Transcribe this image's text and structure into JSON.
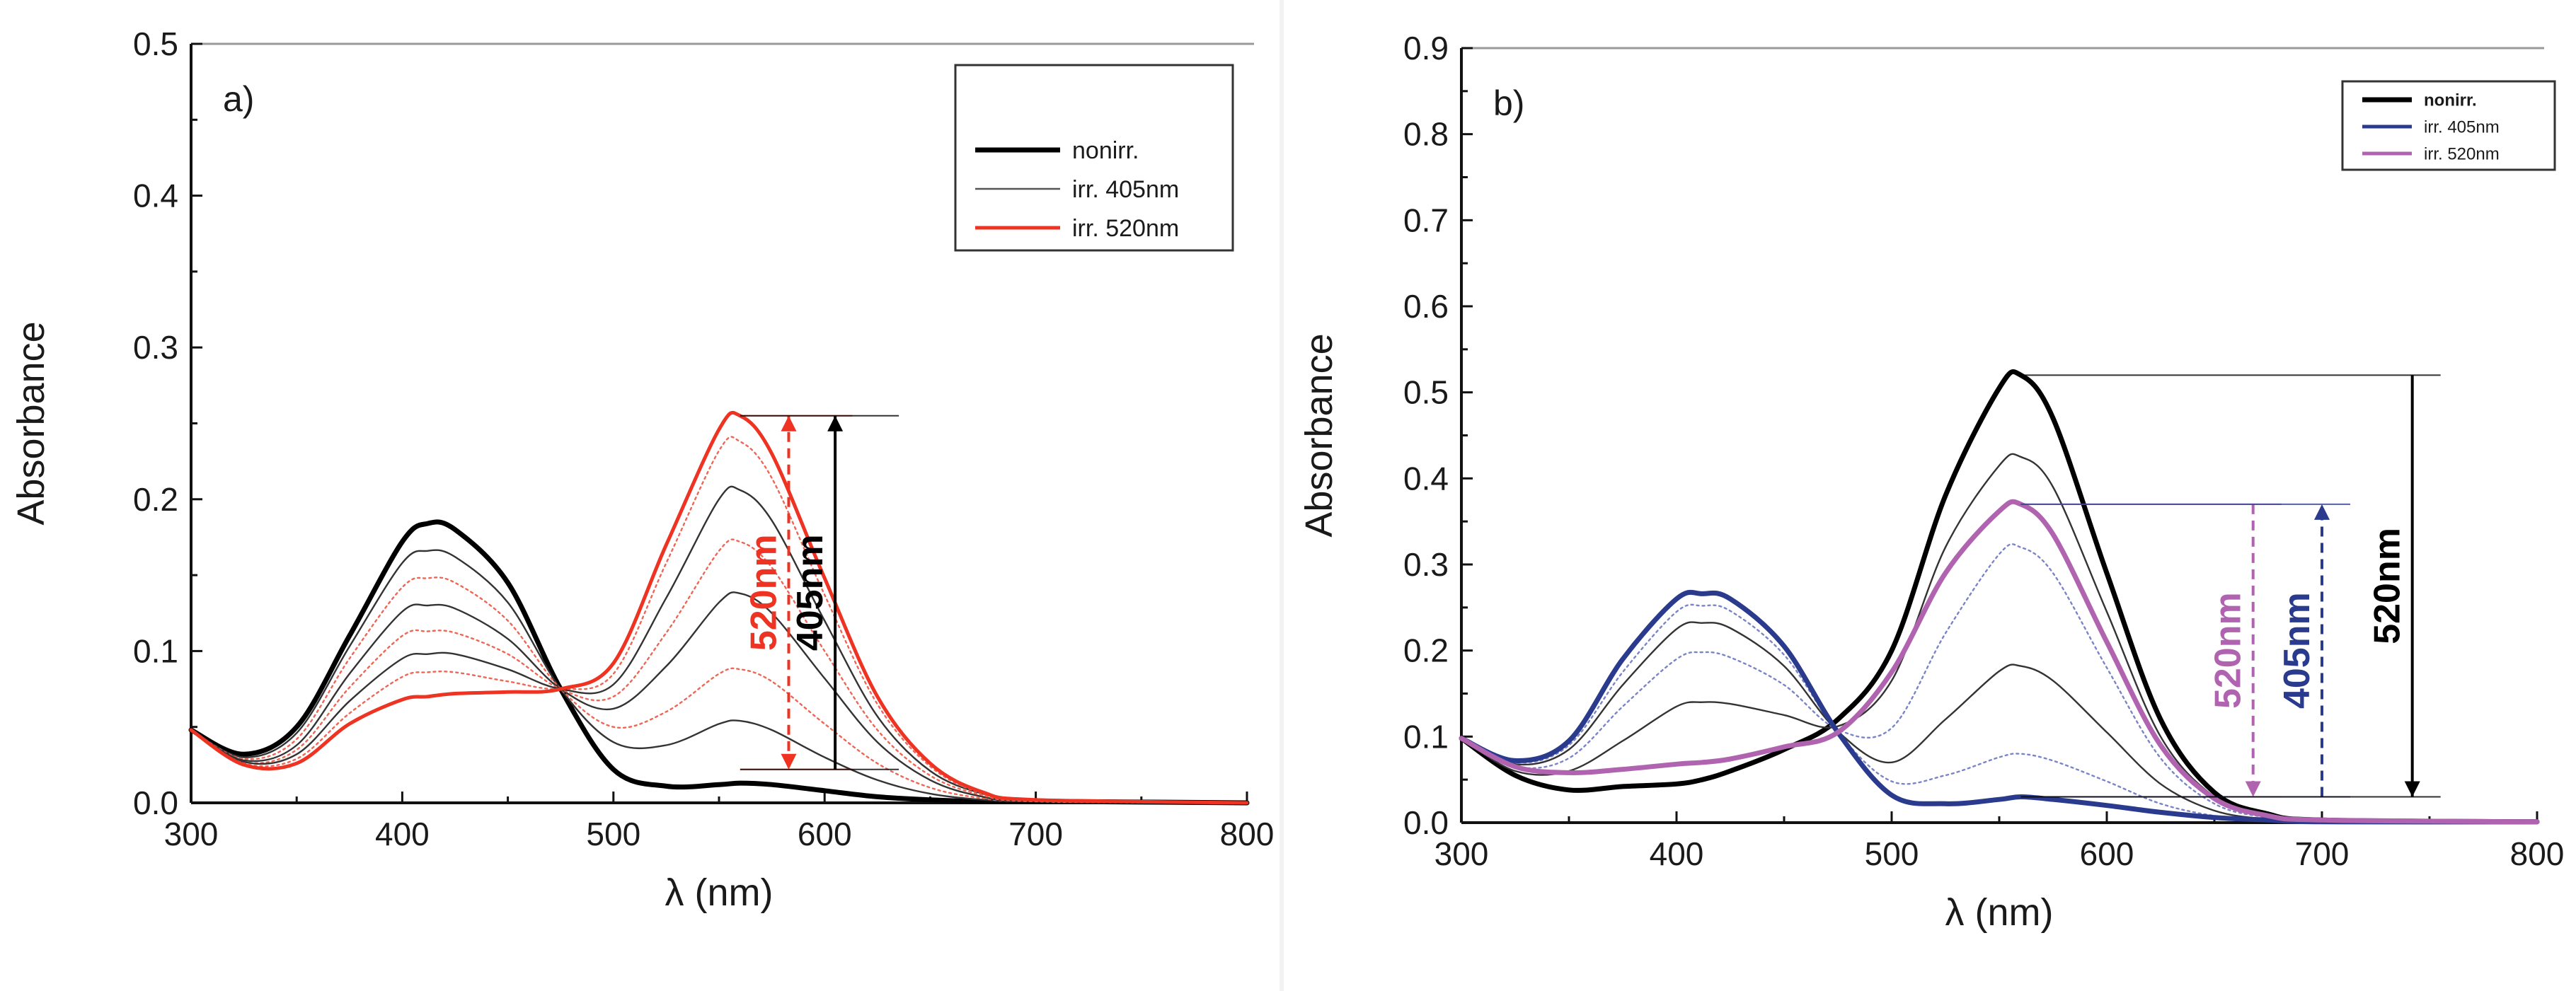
{
  "charts": [
    {
      "panel_label": "a)",
      "chart_data": {
        "type": "line",
        "xlabel": "λ (nm)",
        "ylabel": "Absorbance",
        "xlim": [
          300,
          800
        ],
        "ylim": [
          0.0,
          0.5
        ],
        "xticks": [
          300,
          400,
          500,
          600,
          700,
          800
        ],
        "xtick_labels": [
          "300",
          "400",
          "500",
          "600",
          "700",
          "800"
        ],
        "yticks": [
          0.0,
          0.1,
          0.2,
          0.3,
          0.4,
          0.5
        ],
        "ytick_labels": [
          "0.0",
          "0.1",
          "0.2",
          "0.3",
          "0.4",
          "0.5"
        ],
        "legend": [
          {
            "label": "nonirr.",
            "color": "#000000",
            "style": "thick"
          },
          {
            "label": "irr. 405nm",
            "color": "#555555",
            "style": "thin"
          },
          {
            "label": "irr. 520nm",
            "color": "#ee3322",
            "style": "medium"
          }
        ],
        "series": [
          {
            "name": "nonirr.",
            "color": "#000000",
            "style": "thick",
            "x": [
              300,
              325,
              350,
              375,
              400,
              412,
              425,
              450,
              475,
              500,
              525,
              550,
              560,
              575,
              600,
              625,
              650,
              675,
              700,
              800
            ],
            "y": [
              0.048,
              0.032,
              0.05,
              0.11,
              0.172,
              0.184,
              0.18,
              0.145,
              0.075,
              0.022,
              0.011,
              0.012,
              0.013,
              0.012,
              0.008,
              0.004,
              0.002,
              0.001,
              0.001,
              0.0
            ]
          },
          {
            "name": "irr. 405nm",
            "color": "#333333",
            "style": "thin",
            "x": [
              300,
              325,
              350,
              375,
              400,
              412,
              425,
              450,
              475,
              500,
              525,
              550,
              560,
              575,
              600,
              625,
              650,
              675,
              700,
              800
            ],
            "y": [
              0.048,
              0.03,
              0.046,
              0.103,
              0.158,
              0.166,
              0.162,
              0.132,
              0.075,
              0.04,
              0.038,
              0.052,
              0.054,
              0.048,
              0.03,
              0.015,
              0.006,
              0.002,
              0.001,
              0.0
            ]
          },
          {
            "name": "irr. 520nm",
            "color": "#ee6655",
            "style": "dotted",
            "x": [
              300,
              325,
              350,
              375,
              400,
              412,
              425,
              450,
              475,
              500,
              525,
              550,
              560,
              575,
              600,
              625,
              650,
              675,
              700,
              800
            ],
            "y": [
              0.048,
              0.029,
              0.042,
              0.095,
              0.142,
              0.148,
              0.145,
              0.12,
              0.075,
              0.05,
              0.06,
              0.085,
              0.088,
              0.08,
              0.052,
              0.026,
              0.01,
              0.003,
              0.001,
              0.0
            ]
          },
          {
            "name": "irr. 405nm",
            "color": "#333333",
            "style": "thin",
            "x": [
              300,
              325,
              350,
              375,
              400,
              412,
              425,
              450,
              475,
              500,
              525,
              550,
              560,
              575,
              600,
              625,
              650,
              675,
              700,
              800
            ],
            "y": [
              0.048,
              0.028,
              0.038,
              0.085,
              0.126,
              0.13,
              0.128,
              0.108,
              0.075,
              0.062,
              0.09,
              0.132,
              0.138,
              0.125,
              0.082,
              0.04,
              0.015,
              0.004,
              0.001,
              0.0
            ]
          },
          {
            "name": "irr. 520nm",
            "color": "#ee6655",
            "style": "dotted",
            "x": [
              300,
              325,
              350,
              375,
              400,
              412,
              425,
              450,
              475,
              500,
              525,
              550,
              560,
              575,
              600,
              625,
              650,
              675,
              700,
              800
            ],
            "y": [
              0.048,
              0.027,
              0.035,
              0.076,
              0.11,
              0.113,
              0.112,
              0.098,
              0.075,
              0.07,
              0.112,
              0.166,
              0.172,
              0.155,
              0.1,
              0.048,
              0.018,
              0.005,
              0.001,
              0.0
            ]
          },
          {
            "name": "irr. 405nm",
            "color": "#333333",
            "style": "thin",
            "x": [
              300,
              325,
              350,
              375,
              400,
              412,
              425,
              450,
              475,
              500,
              525,
              550,
              560,
              575,
              600,
              625,
              650,
              675,
              700,
              800
            ],
            "y": [
              0.048,
              0.027,
              0.032,
              0.067,
              0.095,
              0.098,
              0.098,
              0.088,
              0.075,
              0.078,
              0.135,
              0.2,
              0.206,
              0.186,
              0.12,
              0.057,
              0.021,
              0.006,
              0.001,
              0.0
            ]
          },
          {
            "name": "irr. 520nm",
            "color": "#ee6655",
            "style": "dotted",
            "x": [
              300,
              325,
              350,
              375,
              400,
              412,
              425,
              450,
              475,
              500,
              525,
              550,
              560,
              575,
              600,
              625,
              650,
              675,
              700,
              800
            ],
            "y": [
              0.048,
              0.026,
              0.029,
              0.059,
              0.083,
              0.086,
              0.086,
              0.08,
              0.075,
              0.085,
              0.158,
              0.232,
              0.238,
              0.214,
              0.137,
              0.065,
              0.024,
              0.006,
              0.001,
              0.0
            ]
          },
          {
            "name": "irr. 520nm",
            "color": "#ee3322",
            "style": "medium",
            "x": [
              300,
              325,
              350,
              375,
              400,
              412,
              425,
              450,
              475,
              500,
              525,
              550,
              560,
              575,
              600,
              625,
              650,
              675,
              700,
              800
            ],
            "y": [
              0.048,
              0.025,
              0.026,
              0.052,
              0.068,
              0.07,
              0.072,
              0.073,
              0.075,
              0.092,
              0.17,
              0.246,
              0.255,
              0.23,
              0.148,
              0.07,
              0.026,
              0.007,
              0.002,
              0.0
            ]
          }
        ],
        "annotations": [
          {
            "text": "520nm",
            "color": "#ee3322",
            "type": "double-dashed-arrow",
            "x": 583,
            "from": 0.255,
            "to": 0.022
          },
          {
            "text": "405nm",
            "color": "#000000",
            "type": "solid-arrow",
            "x": 605,
            "from": 0.022,
            "to": 0.255
          }
        ]
      }
    },
    {
      "panel_label": "b)",
      "chart_data": {
        "type": "line",
        "xlabel": "λ (nm)",
        "ylabel": "Absorbance",
        "xlim": [
          300,
          800
        ],
        "ylim": [
          0.0,
          0.9
        ],
        "xticks": [
          300,
          400,
          500,
          600,
          700,
          800
        ],
        "xtick_labels": [
          "300",
          "400",
          "500",
          "600",
          "700",
          "800"
        ],
        "yticks": [
          0.0,
          0.1,
          0.2,
          0.3,
          0.4,
          0.5,
          0.6,
          0.7,
          0.8,
          0.9
        ],
        "ytick_labels": [
          "0.0",
          "0.1",
          "0.2",
          "0.3",
          "0.4",
          "0.5",
          "0.6",
          "0.7",
          "0.8",
          "0.9"
        ],
        "legend": [
          {
            "label": "nonirr.",
            "color": "#000000",
            "style": "thick"
          },
          {
            "label": "irr. 405nm",
            "color": "#2a3a8c",
            "style": "medium"
          },
          {
            "label": "irr. 520nm",
            "color": "#b064b0",
            "style": "medium"
          }
        ],
        "series": [
          {
            "name": "nonirr.",
            "color": "#000000",
            "style": "thick",
            "x": [
              300,
              325,
              350,
              375,
              400,
              412,
              425,
              450,
              475,
              500,
              525,
              550,
              560,
              575,
              600,
              625,
              650,
              675,
              700,
              800
            ],
            "y": [
              0.098,
              0.055,
              0.038,
              0.042,
              0.045,
              0.05,
              0.06,
              0.085,
              0.12,
              0.2,
              0.38,
              0.505,
              0.52,
              0.47,
              0.29,
              0.12,
              0.035,
              0.01,
              0.003,
              0.001
            ]
          },
          {
            "name": "irr. 405nm",
            "color": "#333333",
            "style": "thin",
            "x": [
              300,
              325,
              350,
              375,
              400,
              412,
              425,
              450,
              475,
              500,
              525,
              550,
              560,
              575,
              600,
              625,
              650,
              675,
              700,
              800
            ],
            "y": [
              0.098,
              0.06,
              0.06,
              0.095,
              0.135,
              0.14,
              0.138,
              0.125,
              0.112,
              0.165,
              0.32,
              0.415,
              0.425,
              0.39,
              0.245,
              0.1,
              0.03,
              0.008,
              0.003,
              0.001
            ]
          },
          {
            "name": "irr. 405nm",
            "color": "#7a84c8",
            "style": "dotted",
            "x": [
              300,
              325,
              350,
              375,
              400,
              412,
              425,
              450,
              475,
              500,
              525,
              550,
              560,
              575,
              600,
              625,
              650,
              675,
              700,
              800
            ],
            "y": [
              0.098,
              0.065,
              0.075,
              0.135,
              0.19,
              0.198,
              0.192,
              0.16,
              0.108,
              0.11,
              0.22,
              0.312,
              0.32,
              0.29,
              0.18,
              0.075,
              0.022,
              0.006,
              0.002,
              0.001
            ]
          },
          {
            "name": "irr. 405nm",
            "color": "#333333",
            "style": "thin",
            "x": [
              300,
              325,
              350,
              375,
              400,
              412,
              425,
              450,
              475,
              500,
              525,
              550,
              560,
              575,
              600,
              625,
              650,
              675,
              700,
              800
            ],
            "y": [
              0.098,
              0.068,
              0.085,
              0.16,
              0.225,
              0.232,
              0.226,
              0.182,
              0.106,
              0.07,
              0.12,
              0.176,
              0.182,
              0.165,
              0.105,
              0.045,
              0.014,
              0.004,
              0.002,
              0.001
            ]
          },
          {
            "name": "irr. 405nm",
            "color": "#7a84c8",
            "style": "dotted",
            "x": [
              300,
              325,
              350,
              375,
              400,
              412,
              425,
              450,
              475,
              500,
              525,
              550,
              560,
              575,
              600,
              625,
              650,
              675,
              700,
              800
            ],
            "y": [
              0.098,
              0.07,
              0.09,
              0.175,
              0.245,
              0.252,
              0.246,
              0.195,
              0.105,
              0.048,
              0.055,
              0.076,
              0.08,
              0.072,
              0.048,
              0.022,
              0.008,
              0.003,
              0.001,
              0.001
            ]
          },
          {
            "name": "irr. 405nm",
            "color": "#2a3a8c",
            "style": "thick",
            "x": [
              300,
              325,
              350,
              375,
              400,
              412,
              425,
              450,
              475,
              500,
              525,
              550,
              560,
              575,
              600,
              625,
              650,
              675,
              700,
              800
            ],
            "y": [
              0.098,
              0.072,
              0.095,
              0.19,
              0.26,
              0.266,
              0.26,
              0.205,
              0.105,
              0.032,
              0.022,
              0.027,
              0.03,
              0.027,
              0.02,
              0.012,
              0.006,
              0.003,
              0.001,
              0.001
            ]
          },
          {
            "name": "irr. 520nm",
            "color": "#b064b0",
            "style": "thick",
            "x": [
              300,
              325,
              350,
              375,
              400,
              412,
              425,
              450,
              475,
              500,
              525,
              550,
              560,
              575,
              600,
              625,
              650,
              675,
              700,
              800
            ],
            "y": [
              0.098,
              0.065,
              0.058,
              0.062,
              0.068,
              0.07,
              0.074,
              0.088,
              0.105,
              0.175,
              0.29,
              0.362,
              0.37,
              0.335,
              0.21,
              0.09,
              0.028,
              0.008,
              0.003,
              0.001
            ]
          }
        ],
        "annotations": [
          {
            "text": "520nm",
            "color": "#b064b0",
            "type": "dashed-arrow",
            "x": 668,
            "from": 0.37,
            "to": 0.03
          },
          {
            "text": "405nm",
            "color": "#2a3a8c",
            "type": "dashed-arrow",
            "x": 700,
            "from": 0.03,
            "to": 0.37
          },
          {
            "text": "520nm",
            "color": "#000000",
            "type": "solid-arrow",
            "x": 742,
            "from": 0.52,
            "to": 0.03
          }
        ]
      }
    }
  ]
}
